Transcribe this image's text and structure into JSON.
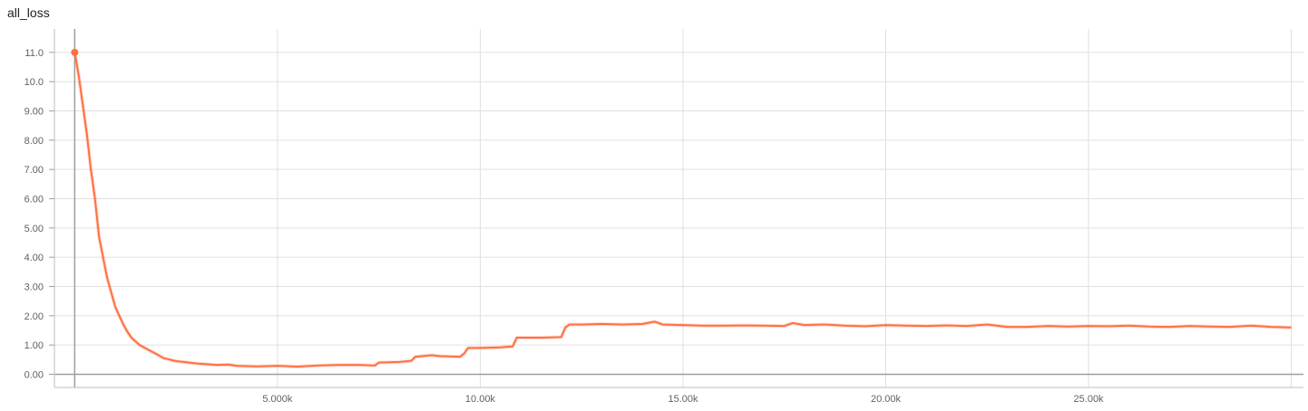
{
  "chart_data": {
    "type": "line",
    "title": "all_loss",
    "xlabel": "",
    "ylabel": "",
    "xlim": [
      -500,
      30300
    ],
    "ylim": [
      -0.45,
      11.8
    ],
    "grid": true,
    "legend": "none",
    "x_ticks": [
      {
        "value": 5000,
        "label": "5.000k"
      },
      {
        "value": 10000,
        "label": "10.00k"
      },
      {
        "value": 15000,
        "label": "15.00k"
      },
      {
        "value": 20000,
        "label": "20.00k"
      },
      {
        "value": 25000,
        "label": "25.00k"
      },
      {
        "value": 30000,
        "label": ""
      }
    ],
    "y_ticks": [
      {
        "value": 0,
        "label": "0.00"
      },
      {
        "value": 1,
        "label": "1.00"
      },
      {
        "value": 2,
        "label": "2.00"
      },
      {
        "value": 3,
        "label": "3.00"
      },
      {
        "value": 4,
        "label": "4.00"
      },
      {
        "value": 5,
        "label": "5.00"
      },
      {
        "value": 6,
        "label": "6.00"
      },
      {
        "value": 7,
        "label": "7.00"
      },
      {
        "value": 8,
        "label": "8.00"
      },
      {
        "value": 9,
        "label": "9.00"
      },
      {
        "value": 10,
        "label": "10.0"
      },
      {
        "value": 11,
        "label": "11.0"
      }
    ],
    "series": [
      {
        "color": "#ff7043",
        "x": [
          0,
          100,
          200,
          300,
          400,
          500,
          600,
          700,
          800,
          900,
          1000,
          1100,
          1200,
          1300,
          1400,
          1600,
          1800,
          2000,
          2200,
          2500,
          3000,
          3500,
          3800,
          4000,
          4500,
          5000,
          5500,
          6000,
          6500,
          7000,
          7400,
          7500,
          8000,
          8300,
          8400,
          8800,
          9000,
          9500,
          9600,
          9700,
          10000,
          10500,
          10800,
          10900,
          11000,
          11500,
          12000,
          12100,
          12200,
          12500,
          13000,
          13500,
          14000,
          14300,
          14500,
          15000,
          15500,
          16000,
          16500,
          17000,
          17500,
          17700,
          18000,
          18500,
          19000,
          19500,
          20000,
          20500,
          21000,
          21500,
          22000,
          22500,
          23000,
          23500,
          24000,
          24500,
          25000,
          25500,
          26000,
          26500,
          27000,
          27500,
          28000,
          28500,
          29000,
          29500,
          30000
        ],
        "y": [
          11.0,
          10.2,
          9.2,
          8.2,
          7.0,
          6.0,
          4.7,
          4.0,
          3.3,
          2.8,
          2.3,
          2.0,
          1.7,
          1.45,
          1.25,
          1.0,
          0.85,
          0.7,
          0.55,
          0.45,
          0.37,
          0.32,
          0.33,
          0.29,
          0.27,
          0.29,
          0.26,
          0.3,
          0.32,
          0.32,
          0.3,
          0.4,
          0.42,
          0.46,
          0.6,
          0.65,
          0.62,
          0.6,
          0.7,
          0.9,
          0.9,
          0.92,
          0.95,
          1.25,
          1.25,
          1.25,
          1.27,
          1.6,
          1.7,
          1.7,
          1.72,
          1.7,
          1.72,
          1.8,
          1.7,
          1.68,
          1.66,
          1.66,
          1.67,
          1.66,
          1.65,
          1.75,
          1.68,
          1.7,
          1.66,
          1.64,
          1.68,
          1.66,
          1.65,
          1.67,
          1.65,
          1.7,
          1.62,
          1.62,
          1.65,
          1.63,
          1.65,
          1.64,
          1.66,
          1.63,
          1.62,
          1.65,
          1.63,
          1.62,
          1.66,
          1.62,
          1.6
        ]
      }
    ]
  }
}
